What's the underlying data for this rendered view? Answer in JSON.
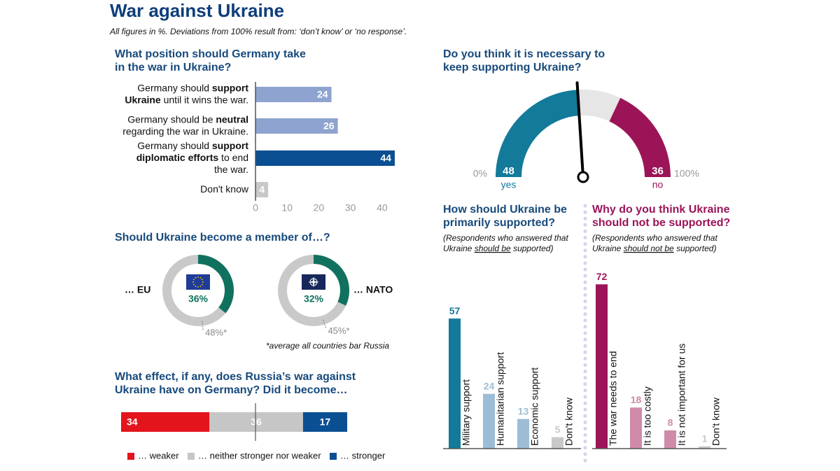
{
  "header": {
    "title": "War against Ukraine",
    "subtitle": "All figures in %. Deviations from 100% result from: ‘don’t know’ or ‘no response’."
  },
  "chart_data": [
    {
      "type": "hbar",
      "title": [
        "What position should Germany take",
        "in the war in Ukraine?"
      ],
      "categories": [
        [
          [
            {
              "text": "Germany should "
            },
            {
              "text": "support",
              "bold": true
            }
          ],
          [
            {
              "text": "Ukraine",
              "bold": true
            },
            {
              "text": " until it wins the war."
            }
          ]
        ],
        [
          [
            {
              "text": "Germany should be "
            },
            {
              "text": "neutral",
              "bold": true
            }
          ],
          [
            {
              "text": "regarding the war in Ukraine."
            }
          ]
        ],
        [
          [
            {
              "text": "Germany should "
            },
            {
              "text": "support",
              "bold": true
            }
          ],
          [
            {
              "text": "diplomatic efforts",
              "bold": true
            },
            {
              "text": " to end"
            }
          ],
          [
            {
              "text": "the war."
            }
          ]
        ],
        [
          [
            {
              "text": "Don't know"
            }
          ]
        ]
      ],
      "values": [
        24,
        26,
        44,
        4
      ],
      "colors": [
        "#8ea3cf",
        "#8ea3cf",
        "#0b4f93",
        "#c9c9c9"
      ],
      "xlim": [
        0,
        46
      ],
      "xticks": [
        0,
        10,
        20,
        30,
        40
      ]
    },
    {
      "type": "donut",
      "title": [
        "Should Ukraine become a member of…?"
      ],
      "categories": [
        "… EU",
        "… NATO"
      ],
      "values": [
        36,
        32
      ],
      "value_labels": [
        "36%",
        "32%"
      ],
      "averages": [
        48,
        45
      ],
      "average_labels": [
        "48%*",
        "45%*"
      ],
      "color": "#11715f",
      "rest_color": "#c9c9c9",
      "footnote": "*average all countries bar Russia"
    },
    {
      "type": "stacked_hbar",
      "title": [
        "What effect, if any, does Russia’s war against",
        "Ukraine have on Germany? Did it become…"
      ],
      "series": [
        {
          "name": "… weaker",
          "color": "#e3141b",
          "values": [
            34
          ]
        },
        {
          "name": "… neither stronger nor weaker",
          "color": "#c6c6c6",
          "values": [
            36
          ]
        },
        {
          "name": "… stronger",
          "color": "#0b4f93",
          "values": [
            17
          ]
        }
      ],
      "xlim": [
        0,
        87
      ]
    },
    {
      "type": "gauge",
      "title": [
        "Do you think it is necessary to",
        "keep supporting Ukraine?"
      ],
      "categories": [
        "yes",
        "no"
      ],
      "values": [
        48,
        36
      ],
      "colors": [
        "#137a9a",
        "#9b1458"
      ],
      "rest_color": "#e6e6e6",
      "xlim": [
        0,
        100
      ],
      "xticks": [
        {
          "value": 0,
          "label": "0%"
        },
        {
          "value": 100,
          "label": "100%"
        }
      ]
    },
    {
      "type": "bar",
      "title": [
        "How should Ukraine be",
        "primarily supported?"
      ],
      "note": [
        [
          {
            "text": "(Respondents who answered that"
          }
        ],
        [
          {
            "text": "Ukraine "
          },
          {
            "text": "should be",
            "underline": true
          },
          {
            "text": " supported)"
          }
        ]
      ],
      "categories": [
        "Military support",
        "Humanitarian support",
        "Economic support",
        "Don't know"
      ],
      "values": [
        57,
        24,
        13,
        5
      ],
      "colors": [
        "#137a9a",
        "#9dbdd6",
        "#9dbdd6",
        "#c9c9c9"
      ],
      "ylim": [
        0,
        100
      ]
    },
    {
      "type": "bar",
      "title": [
        "Why do you think Ukraine",
        "should not be supported?"
      ],
      "title_color": "#9b1458",
      "note": [
        [
          {
            "text": "(Respondents who answered that"
          }
        ],
        [
          {
            "text": "Ukraine "
          },
          {
            "text": "should not be",
            "underline": true
          },
          {
            "text": " supported)"
          }
        ]
      ],
      "categories": [
        "The war needs to end",
        "It is too costly",
        "It is not important for us",
        "Don't know"
      ],
      "values": [
        72,
        18,
        8,
        1
      ],
      "colors": [
        "#9b1458",
        "#d08aaa",
        "#d08aaa",
        "#c9c9c9"
      ],
      "ylim": [
        0,
        100
      ]
    }
  ]
}
